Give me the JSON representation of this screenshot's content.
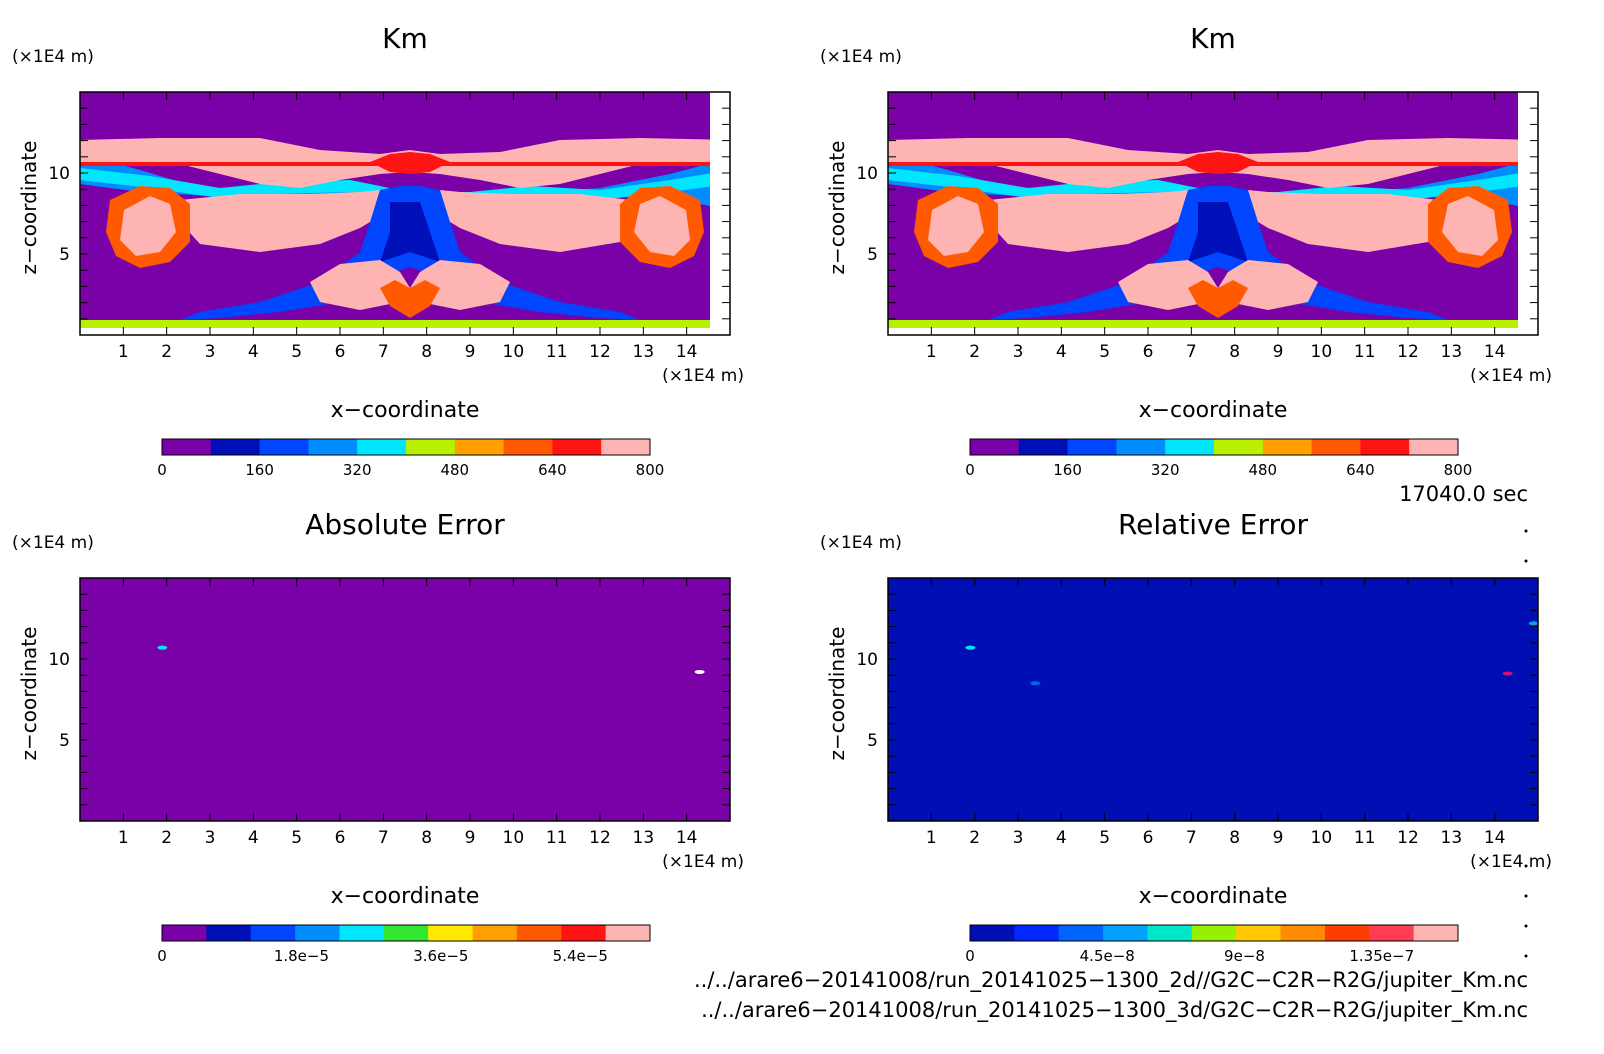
{
  "common": {
    "x_unit": "(×1E4 m)",
    "z_unit": "(×1E4 m)",
    "xlabel": "x−coordinate",
    "ylabel": "z−coordinate",
    "x_ticks": [
      "1",
      "2",
      "3",
      "4",
      "5",
      "6",
      "7",
      "8",
      "9",
      "10",
      "11",
      "12",
      "13",
      "14"
    ],
    "z_ticks": [
      "5",
      "10"
    ]
  },
  "time_label": "17040.0 sec",
  "files": [
    "../../arare6−20141008/run_20141025−1300_2d//G2C−C2R−R2G/jupiter_Km.nc",
    "../../arare6−20141008/run_20141025−1300_3d/G2C−C2R−R2G/jupiter_Km.nc"
  ],
  "chart_data": [
    {
      "type": "heatmap",
      "title": "Km",
      "xlabel": "x−coordinate",
      "ylabel": "z−coordinate",
      "xlim": [
        0,
        15
      ],
      "ylim": [
        0,
        15
      ],
      "colorbar": {
        "min": 0,
        "max": 800,
        "tick_labels": [
          "0",
          "160",
          "320",
          "480",
          "640",
          "800"
        ],
        "colors": [
          "#7a00a8",
          "#0010b8",
          "#0046ff",
          "#008cff",
          "#00e6ff",
          "#b8f000",
          "#ffa000",
          "#ff5a00",
          "#ff1414",
          "#ffb4b4"
        ]
      },
      "features": "plume structure symmetric about x=7.5, Km saturating at 800 near z≈10 and z≈6"
    },
    {
      "type": "heatmap",
      "title": "Km",
      "xlabel": "x−coordinate",
      "ylabel": "z−coordinate",
      "xlim": [
        0,
        15
      ],
      "ylim": [
        0,
        15
      ],
      "colorbar": {
        "min": 0,
        "max": 800,
        "tick_labels": [
          "0",
          "160",
          "320",
          "480",
          "640",
          "800"
        ],
        "colors": [
          "#7a00a8",
          "#0010b8",
          "#0046ff",
          "#008cff",
          "#00e6ff",
          "#b8f000",
          "#ffa000",
          "#ff5a00",
          "#ff1414",
          "#ffb4b4"
        ]
      },
      "features": "identical field to the left panel"
    },
    {
      "type": "heatmap",
      "title": "Absolute Error",
      "xlabel": "x−coordinate",
      "ylabel": "z−coordinate",
      "xlim": [
        0,
        15
      ],
      "ylim": [
        0,
        15
      ],
      "colorbar": {
        "min": 0,
        "max": 6.3e-05,
        "tick_labels": [
          "0",
          "1.8e−5",
          "3.6e−5",
          "5.4e−5"
        ],
        "colors": [
          "#7a00a8",
          "#0010b8",
          "#0046ff",
          "#008cff",
          "#00e6ff",
          "#32e632",
          "#ffea00",
          "#ffa000",
          "#ff5a00",
          "#ff1414",
          "#ffb4b4"
        ]
      },
      "field_value": 0,
      "spots": [
        {
          "x": 1.9,
          "z": 10.7,
          "color": "#00e6ff"
        },
        {
          "x": 14.3,
          "z": 9.2,
          "color": "#ffffff"
        }
      ]
    },
    {
      "type": "heatmap",
      "title": "Relative Error",
      "xlabel": "x−coordinate",
      "ylabel": "z−coordinate",
      "xlim": [
        0,
        15
      ],
      "ylim": [
        0,
        15
      ],
      "colorbar": {
        "min": 0,
        "max": 1.6e-07,
        "tick_labels": [
          "0",
          "4.5e−8",
          "9e−8",
          "1.35e−7"
        ],
        "colors": [
          "#000fb4",
          "#0028ff",
          "#0064ff",
          "#00a0ff",
          "#00e6c8",
          "#96f000",
          "#ffc800",
          "#ff8c00",
          "#ff3c00",
          "#ff3c50",
          "#ffb4b4"
        ]
      },
      "field_value": 0,
      "spots": [
        {
          "x": 1.9,
          "z": 10.7,
          "color": "#00e6ff"
        },
        {
          "x": 3.4,
          "z": 8.5,
          "color": "#0064ff"
        },
        {
          "x": 14.3,
          "z": 9.1,
          "color": "#c81478"
        },
        {
          "x": 14.9,
          "z": 12.2,
          "color": "#00a0ff"
        }
      ]
    }
  ]
}
